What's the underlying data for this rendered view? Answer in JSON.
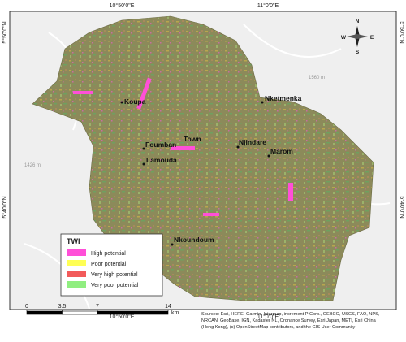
{
  "coordinates": {
    "top": [
      "10°50'0\"E",
      "11°0'0\"E"
    ],
    "bottom": [
      "10°50'0\"E",
      "11°0'0\"E"
    ],
    "left": [
      "5°50'0\"N",
      "5°40'0\"N"
    ],
    "right": [
      "5°50'0\"N",
      "5°40'0\"N"
    ]
  },
  "places": [
    "Koupa",
    "Nketmenka",
    "Foumban",
    "Town",
    "Lamouda",
    "Njindare",
    "Marom",
    "Nkoundoum"
  ],
  "elevations": [
    "1560 m",
    "1426 m"
  ],
  "compass": {
    "n": "N",
    "s": "S",
    "e": "E",
    "w": "W"
  },
  "legend": {
    "title": "TWI",
    "items": [
      {
        "label": "High potential",
        "color": "#ff4fd8"
      },
      {
        "label": "Poor potential",
        "color": "#ffff55"
      },
      {
        "label": "Very high potential",
        "color": "#f25a5a"
      },
      {
        "label": "Very poor potential",
        "color": "#90ee80"
      }
    ]
  },
  "scale": {
    "ticks": [
      0,
      3.5,
      7,
      14
    ],
    "unit": "km"
  },
  "sources": [
    "Sources: Esri, HERE, Garmin, Intermap, increment P Corp., GEBCO, USGS, FAO, NPS,",
    "NRCAN, GeoBase, IGN, Kadaster NL, Ordnance Survey, Esri Japan, METI, Esri China",
    "(Hong Kong), (c) OpenStreetMap contributors, and the GIS User Community"
  ]
}
